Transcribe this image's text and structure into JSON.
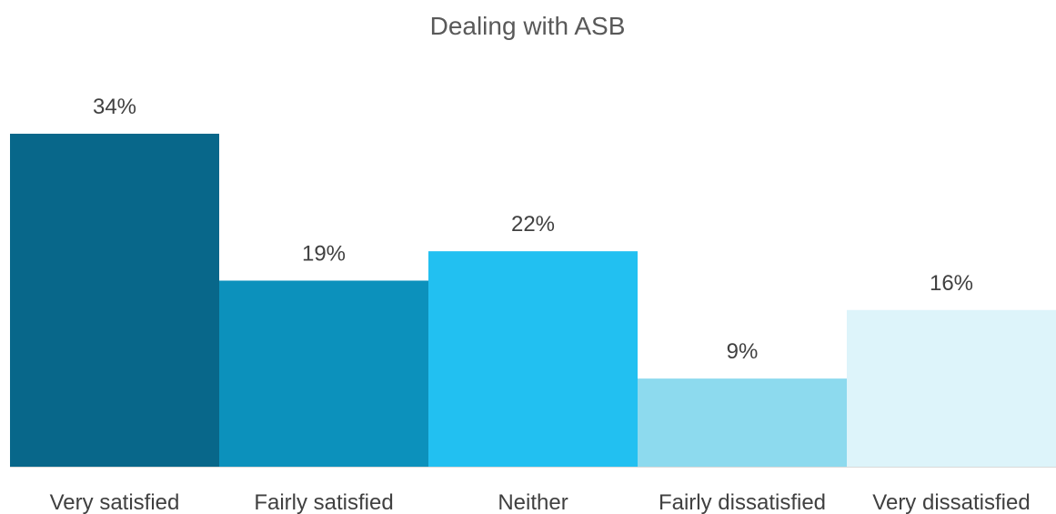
{
  "chart_data": {
    "type": "bar",
    "title": "Dealing with ASB",
    "xlabel": "",
    "ylabel": "",
    "categories": [
      "Very satisfied",
      "Fairly satisfied",
      "Neither",
      "Fairly dissatisfied",
      "Very dissatisfied"
    ],
    "values": [
      34,
      19,
      22,
      9,
      16
    ],
    "value_labels": [
      "34%",
      "19%",
      "22%",
      "9%",
      "16%"
    ],
    "unit": "%",
    "ylim": [
      0,
      34
    ],
    "grid": false,
    "legend": "none",
    "colors": [
      "#08678A",
      "#0C91BC",
      "#22C0F1",
      "#8DDAEE",
      "#DDF4FA"
    ],
    "axis_color": "#D9D9D9"
  }
}
